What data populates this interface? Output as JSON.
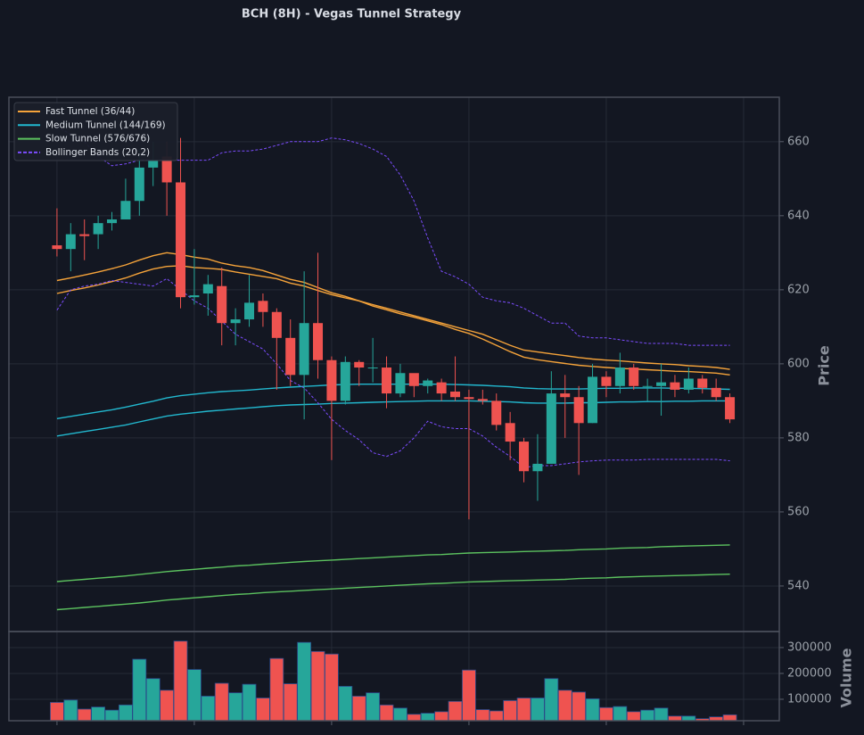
{
  "chart_data": [
    {
      "type": "candlestick",
      "title": "BCH (8H) - Vegas Tunnel Strategy",
      "ylabel": "Price",
      "xlim": [
        -3.5,
        52.6
      ],
      "xticks": [
        0,
        10,
        20,
        30,
        40,
        50
      ],
      "ylim": [
        527.7,
        672
      ],
      "yticks": [
        540,
        560,
        580,
        600,
        620,
        640,
        660
      ],
      "grid": true,
      "up_color": "#26a69a",
      "down_color": "#ef5350",
      "legend": "upper left",
      "open": [
        632,
        631,
        635,
        635,
        638,
        639,
        644,
        653,
        656,
        649,
        618,
        619,
        621,
        611,
        612,
        617,
        614,
        607,
        597,
        611,
        601,
        590,
        600.5,
        599,
        599,
        592,
        597.5,
        594,
        595,
        592.5,
        591,
        590.5,
        590,
        584,
        579,
        571,
        573,
        592,
        591,
        584,
        596.5,
        594,
        599,
        594,
        594,
        595,
        593,
        596,
        593.5,
        591
      ],
      "high": [
        642,
        638,
        639,
        640,
        641,
        650,
        658,
        660,
        660,
        661,
        631,
        624,
        626,
        615,
        624,
        619,
        615,
        612,
        625,
        630,
        602,
        602,
        601,
        607,
        602,
        600,
        597,
        596,
        596,
        602,
        593,
        593,
        592,
        587,
        580,
        581,
        598,
        597,
        594,
        600,
        598,
        603,
        600,
        596,
        600,
        597,
        599,
        597,
        596,
        592
      ],
      "low": [
        629,
        625,
        628,
        631,
        636,
        639,
        640,
        648,
        640,
        615,
        616,
        613,
        605,
        605,
        610,
        610,
        593,
        594,
        585,
        596,
        574,
        589,
        594,
        595,
        588,
        591,
        591,
        592,
        590,
        590,
        558,
        589,
        582,
        574,
        568,
        563,
        573,
        580,
        570,
        584,
        591,
        592,
        593,
        590,
        586,
        591,
        592,
        592,
        590,
        584
      ],
      "close": [
        631,
        635,
        634.5,
        638,
        639,
        644,
        653,
        655,
        649,
        618,
        618.5,
        621.5,
        611,
        612,
        616.5,
        614,
        607,
        597,
        611,
        601,
        590,
        600.5,
        599,
        599,
        592,
        597.5,
        594,
        595.5,
        592,
        591,
        590.5,
        590,
        583.5,
        579,
        571,
        573,
        592,
        591,
        584,
        596.5,
        594,
        599,
        594,
        594,
        595,
        593,
        596,
        593.5,
        591,
        585
      ],
      "lines": [
        {
          "name": "Fast Tunnel (36/44)",
          "color": "#f5a33a",
          "dash": false,
          "upper": [
            622.5,
            623.2,
            624,
            624.8,
            625.7,
            626.7,
            628,
            629.2,
            630,
            629.5,
            628.8,
            628.3,
            627.2,
            626.5,
            626,
            625.2,
            624,
            622.8,
            622,
            620.6,
            619.2,
            618.2,
            617,
            616,
            615,
            614,
            613,
            612,
            611,
            610,
            609,
            608,
            606.5,
            605,
            603.7,
            603.2,
            602.7,
            602.2,
            601.7,
            601.3,
            601,
            600.8,
            600.5,
            600.2,
            600,
            599.8,
            599.5,
            599.3,
            599,
            598.5
          ],
          "lower": [
            619,
            619.8,
            620.5,
            621.3,
            622.2,
            623.2,
            624.5,
            625.6,
            626.3,
            626.5,
            626,
            625.8,
            625.5,
            624.8,
            624.2,
            623.6,
            623,
            621.8,
            621,
            619.8,
            618.7,
            617.8,
            617,
            615.6,
            614.6,
            613.5,
            612.6,
            611.6,
            610.6,
            609.3,
            608.2,
            606.7,
            605,
            603.3,
            601.8,
            601.1,
            600.6,
            600.1,
            599.6,
            599.3,
            599,
            598.8,
            598.6,
            598.4,
            598.2,
            598,
            597.9,
            597.7,
            597.5,
            597
          ]
        },
        {
          "name": "Medium Tunnel (144/169)",
          "color": "#22b8cf",
          "dash": false,
          "upper": [
            585.2,
            585.8,
            586.4,
            587,
            587.6,
            588.3,
            589.1,
            589.9,
            590.8,
            591.4,
            591.8,
            592.2,
            592.5,
            592.7,
            592.9,
            593.2,
            593.5,
            593.7,
            593.9,
            594.1,
            594.3,
            594.4,
            594.5,
            594.5,
            594.5,
            594.5,
            594.5,
            594.5,
            594.5,
            594.4,
            594.3,
            594.2,
            594,
            593.8,
            593.5,
            593.3,
            593.2,
            593.2,
            593.2,
            593.3,
            593.4,
            593.4,
            593.5,
            593.5,
            593.5,
            593.4,
            593.4,
            593.3,
            593.2,
            593.1
          ],
          "lower": [
            580.5,
            581.1,
            581.7,
            582.3,
            582.9,
            583.5,
            584.3,
            585.1,
            585.9,
            586.4,
            586.8,
            587.2,
            587.5,
            587.8,
            588.1,
            588.4,
            588.7,
            588.9,
            589,
            589.1,
            589.3,
            589.4,
            589.5,
            589.6,
            589.7,
            589.8,
            589.9,
            590,
            590,
            590,
            590,
            589.9,
            589.8,
            589.7,
            589.5,
            589.4,
            589.4,
            589.4,
            589.5,
            589.5,
            589.6,
            589.7,
            589.7,
            589.8,
            589.8,
            589.9,
            589.9,
            590,
            590,
            590
          ]
        },
        {
          "name": "Slow Tunnel (576/676)",
          "color": "#5cc25f",
          "dash": false,
          "upper": [
            541.2,
            541.5,
            541.8,
            542.1,
            542.4,
            542.7,
            543.1,
            543.5,
            543.9,
            544.2,
            544.5,
            544.8,
            545.1,
            545.4,
            545.6,
            545.9,
            546.1,
            546.4,
            546.6,
            546.8,
            547,
            547.2,
            547.4,
            547.6,
            547.8,
            548,
            548.2,
            548.4,
            548.5,
            548.7,
            548.9,
            549,
            549.1,
            549.2,
            549.3,
            549.4,
            549.5,
            549.6,
            549.8,
            549.9,
            550,
            550.2,
            550.3,
            550.4,
            550.6,
            550.7,
            550.8,
            550.9,
            551,
            551.1
          ],
          "lower": [
            533.6,
            533.9,
            534.2,
            534.5,
            534.8,
            535.1,
            535.4,
            535.8,
            536.2,
            536.5,
            536.8,
            537.1,
            537.4,
            537.7,
            537.9,
            538.2,
            538.4,
            538.6,
            538.8,
            539,
            539.2,
            539.4,
            539.6,
            539.8,
            540,
            540.2,
            540.4,
            540.6,
            540.7,
            540.9,
            541.1,
            541.2,
            541.3,
            541.4,
            541.5,
            541.6,
            541.7,
            541.8,
            542,
            542.1,
            542.2,
            542.4,
            542.5,
            542.6,
            542.7,
            542.8,
            542.9,
            543,
            543.1,
            543.2
          ]
        },
        {
          "name": "Bollinger Bands (20,2)",
          "color": "#7c4dff",
          "dash": true,
          "upper": [
            664,
            662,
            660,
            656,
            653.5,
            654,
            655,
            655,
            655,
            655,
            655,
            655,
            657,
            657.5,
            657.5,
            658,
            659,
            660,
            660,
            660,
            661,
            660.5,
            659.5,
            658,
            656,
            651,
            644,
            634,
            625,
            623.5,
            621.5,
            618,
            617,
            616.5,
            615,
            613,
            611,
            611,
            607.5,
            607,
            607,
            606.5,
            606,
            605.5,
            605.5,
            605.5,
            605,
            605,
            605,
            605
          ],
          "lower": [
            614.5,
            620,
            621,
            621.5,
            622.5,
            622,
            621.5,
            621,
            623,
            620,
            617,
            615,
            611.5,
            608,
            606,
            604,
            600,
            595.5,
            593.5,
            589.5,
            585,
            582,
            579.5,
            576,
            575,
            576.5,
            580,
            584.5,
            583,
            582.5,
            582.5,
            580.5,
            577.5,
            575,
            572,
            572.5,
            572.5,
            573,
            573.5,
            573.8,
            574,
            574,
            574,
            574.2,
            574.2,
            574.2,
            574.2,
            574.2,
            574.2,
            573.8
          ]
        }
      ]
    },
    {
      "type": "bar",
      "ylabel": "Volume",
      "ylim": [
        17000,
        362000
      ],
      "yticks": [
        100000,
        200000,
        300000
      ],
      "grid": true,
      "values": [
        88000,
        97000,
        62000,
        70000,
        58000,
        78000,
        255000,
        180000,
        135000,
        325000,
        215000,
        112000,
        162000,
        125000,
        158000,
        105000,
        258000,
        160000,
        320000,
        285000,
        275000,
        150000,
        112000,
        125000,
        78000,
        66000,
        42000,
        46000,
        52000,
        92000,
        213000,
        60000,
        55000,
        95000,
        105000,
        105000,
        180000,
        135000,
        128000,
        102000,
        68000,
        72000,
        52000,
        58000,
        66000,
        35000,
        35000,
        25000,
        32000,
        40000
      ]
    }
  ]
}
